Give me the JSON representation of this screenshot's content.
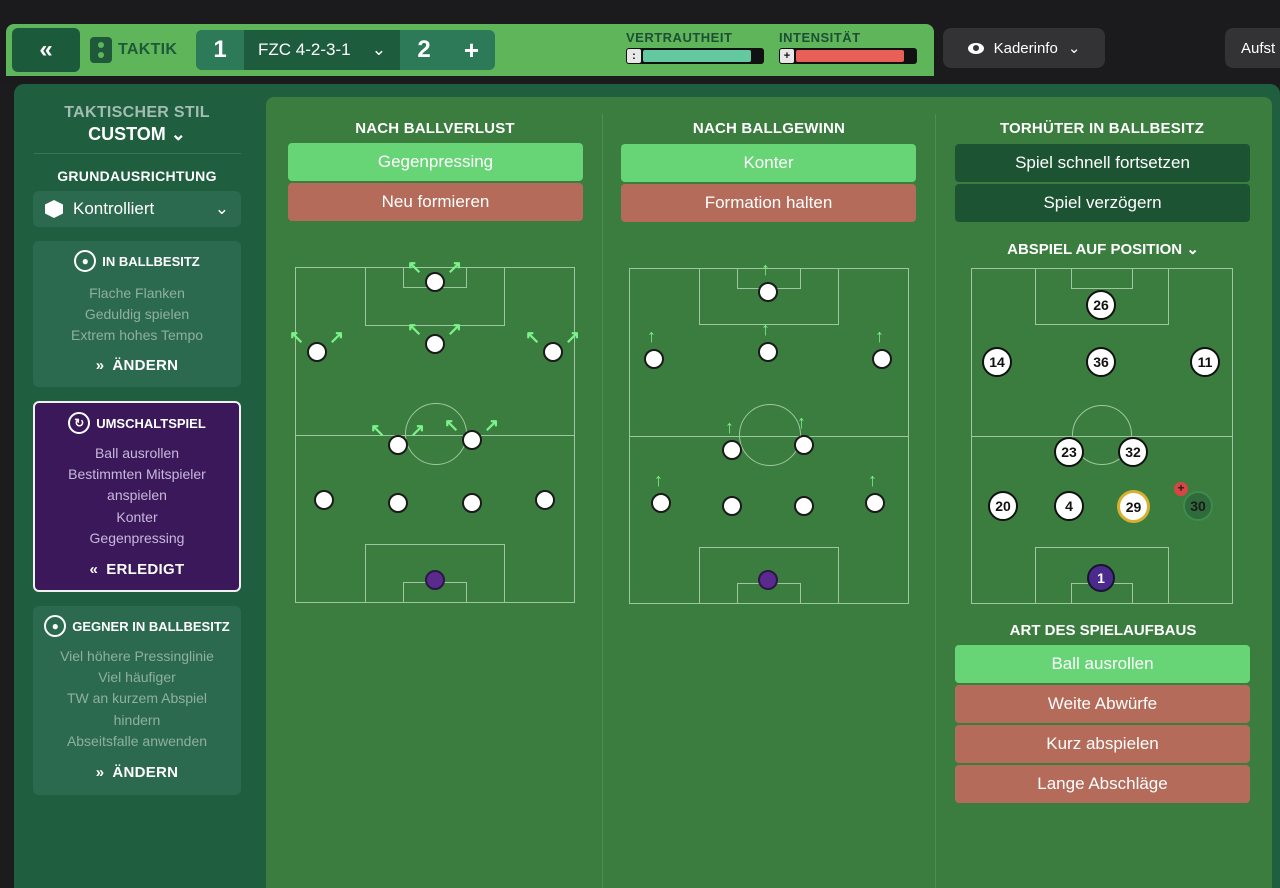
{
  "header": {
    "back_icon": "double-chevron-left-icon",
    "taktik_label": "TAKTIK",
    "slot1": "1",
    "formation": "FZC 4-2-3-1",
    "slot2": "2",
    "add": "+",
    "vertrautheit_label": "VERTRAUTHEIT",
    "vertrautheit_value": 0.9,
    "intensitaet_label": "INTENSITÄT",
    "intensitaet_value": 0.9,
    "vertrautheit_color": "#64c8a0",
    "intensitaet_color": "#e86058",
    "kaderinfo": "Kaderinfo",
    "aufst": "Aufst"
  },
  "sidebar": {
    "stil_label": "TAKTISCHER STIL",
    "stil_value": "CUSTOM",
    "grund_label": "GRUNDAUSRICHTUNG",
    "grund_value": "Kontrolliert",
    "ballbesitz": {
      "title": "IN BALLBESITZ",
      "lines": [
        "Flache Flanken",
        "Geduldig spielen",
        "Extrem hohes Tempo"
      ],
      "action": "ÄNDERN"
    },
    "umschalt": {
      "title": "UMSCHALTSPIEL",
      "lines": [
        "Ball ausrollen",
        "Bestimmten Mitspieler",
        "anspielen",
        "Konter",
        "Gegenpressing"
      ],
      "action": "ERLEDIGT"
    },
    "gegner": {
      "title": "GEGNER IN BALLBESITZ",
      "lines": [
        "Viel höhere Pressinglinie",
        "Viel häufiger",
        "TW an kurzem Abspiel",
        "hindern",
        "Abseitsfalle anwenden"
      ],
      "action": "ÄNDERN"
    }
  },
  "col1": {
    "title": "NACH BALLVERLUST",
    "opt_selected": "Gegenpressing",
    "opt_other": "Neu formieren"
  },
  "col2": {
    "title": "NACH BALLGEWINN",
    "opt_selected": "Konter",
    "opt_other": "Formation halten"
  },
  "col3": {
    "title": "TORHÜTER IN BALLBESITZ",
    "opt1": "Spiel schnell fortsetzen",
    "opt2": "Spiel verzögern",
    "abspiel": "ABSPIEL AUF POSITION",
    "numbers": [
      "26",
      "14",
      "36",
      "11",
      "23",
      "32",
      "20",
      "4",
      "29",
      "30",
      "1"
    ],
    "art": "ART DES SPIELAUFBAUS",
    "art_opts": [
      "Ball ausrollen",
      "Weite Abwürfe",
      "Kurz abspielen",
      "Lange Abschläge"
    ]
  }
}
